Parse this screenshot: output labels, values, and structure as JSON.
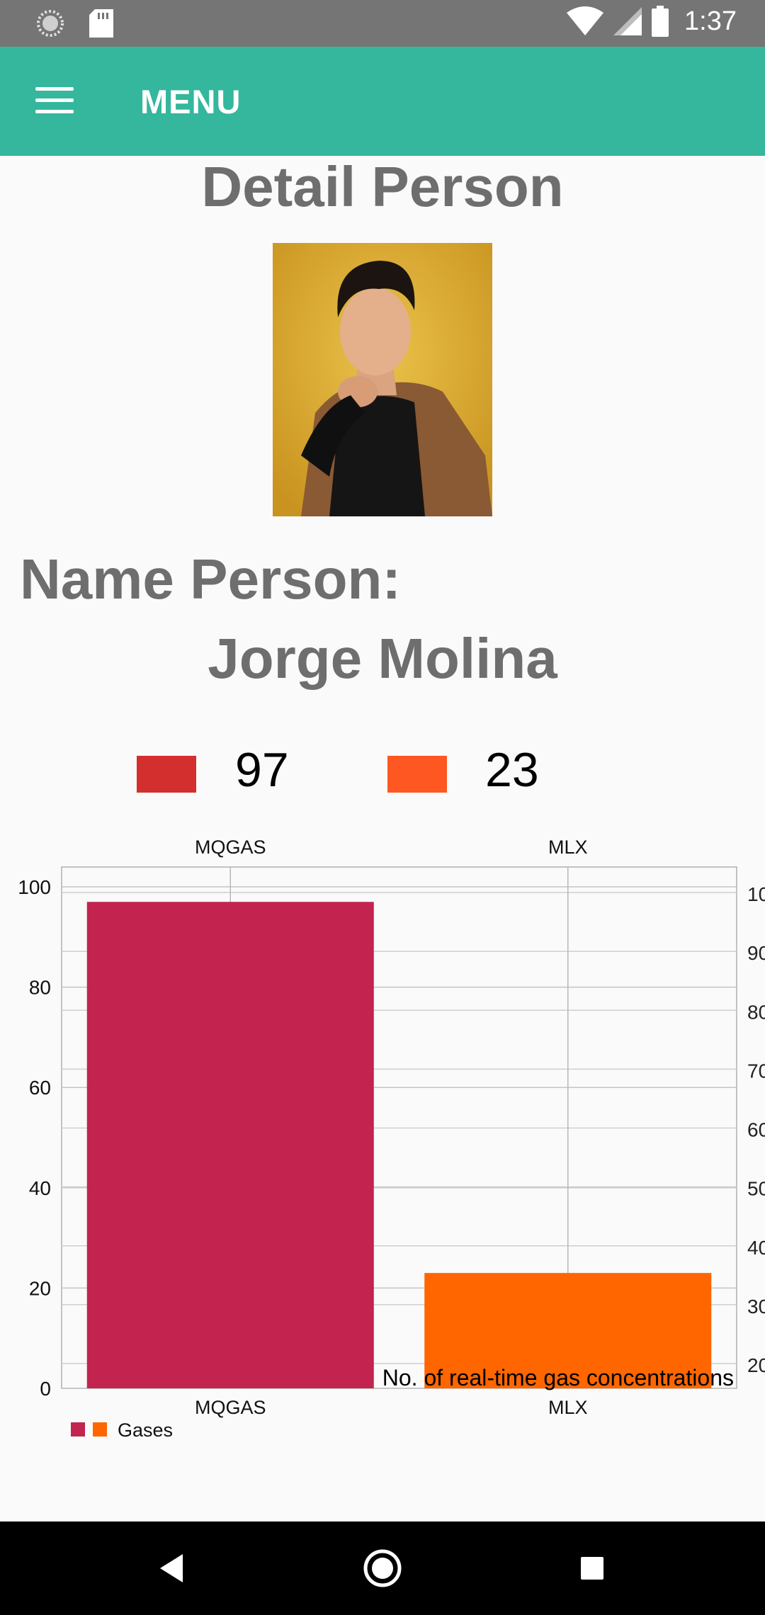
{
  "status_bar": {
    "time": "1:37",
    "icons": [
      "sync-icon",
      "sd-card-icon",
      "wifi-icon",
      "cell-signal-icon",
      "battery-icon"
    ]
  },
  "app_bar": {
    "title": "MENU",
    "menu_icon": "hamburger-menu-icon",
    "color": "#34b79d"
  },
  "content": {
    "page_title": "Detail Person",
    "name_label": "Name Person:",
    "name_value": "Jorge Molina"
  },
  "top_legend": [
    {
      "value": "97",
      "color": "#d32f2f"
    },
    {
      "value": "23",
      "color": "#ff5722"
    }
  ],
  "chart_data": {
    "type": "bar",
    "categories": [
      "MQGAS",
      "MLX"
    ],
    "series": [
      {
        "name": "Gases",
        "values": [
          97,
          23
        ],
        "colors": [
          "#c2244f",
          "#ff6600"
        ]
      }
    ],
    "title": "",
    "description": "No. of real-time gas concentrations",
    "ylim": [
      0,
      100
    ],
    "y_ticks": [
      0,
      20,
      40,
      60,
      80,
      100
    ],
    "right_ticks": [
      "20",
      "30",
      "40",
      "50",
      "60",
      "70",
      "80",
      "90",
      "10"
    ],
    "grid": true,
    "legend_position": "bottom-left"
  },
  "nav_bar": {
    "buttons": [
      "back-icon",
      "home-icon",
      "recents-icon"
    ]
  }
}
